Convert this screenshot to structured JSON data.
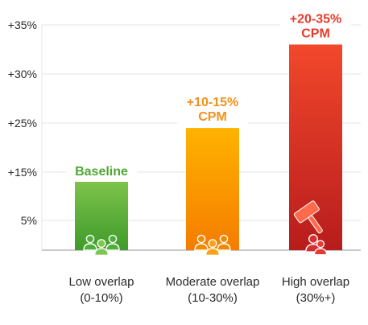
{
  "chart_data": {
    "type": "bar",
    "title": "",
    "xlabel": "",
    "ylabel": "",
    "y_ticks": [
      "+35%",
      "+30%",
      "+25%",
      "+15%",
      "5%"
    ],
    "y_tick_values": [
      35,
      30,
      25,
      15,
      5
    ],
    "ylim": [
      0,
      36
    ],
    "grid": true,
    "categories": [
      {
        "line1": "Low overlap",
        "line2": "(0-10%)"
      },
      {
        "line1": "Moderate overlap",
        "line2": "(10-30%)"
      },
      {
        "line1": "High overlap",
        "line2": "(30%+)"
      }
    ],
    "values": [
      13,
      24,
      33
    ],
    "data_labels": [
      {
        "lines": [
          "Baseline"
        ]
      },
      {
        "lines": [
          "+10-15%",
          "CPM"
        ]
      },
      {
        "lines": [
          "+20-35%",
          "CPM"
        ]
      }
    ],
    "colors": {
      "low_top": "#7dc24b",
      "low_bottom": "#3f9b2a",
      "low_label": "#4fa832",
      "mid_top": "#ffb300",
      "mid_bottom": "#f57c00",
      "mid_label": "#f5901a",
      "high_top": "#f2482c",
      "high_bottom": "#b71c1c",
      "high_label": "#e83a2a",
      "grid": "#e6e6e6",
      "axis": "#b5b5b5"
    },
    "icons": [
      "people-group-icon",
      "people-group-icon",
      "people-group-icon",
      "gavel-icon"
    ]
  }
}
